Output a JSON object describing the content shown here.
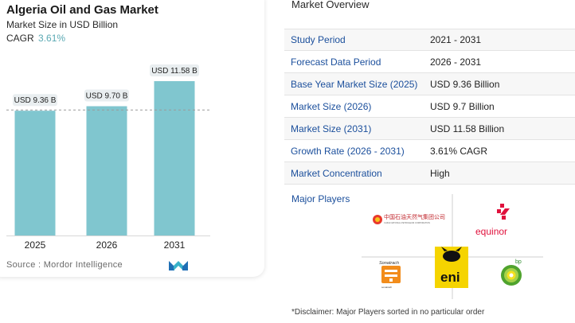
{
  "chart": {
    "title": "Algeria Oil and Gas Market",
    "subtitle": "Market Size in USD Billion",
    "cagr_label": "CAGR",
    "cagr_value": "3.61%",
    "source": "Source :  Mordor Intelligence"
  },
  "chart_data": {
    "type": "bar",
    "categories": [
      "2025",
      "2026",
      "2031"
    ],
    "values": [
      9.36,
      9.7,
      11.58
    ],
    "data_labels": [
      "USD 9.36 B",
      "USD 9.70 B",
      "USD 11.58 B"
    ],
    "title": "Algeria Oil and Gas Market",
    "subtitle": "Market Size in USD Billion",
    "xlabel": "",
    "ylabel": "",
    "bar_color": "#80c6cf",
    "reference_line_value": 9.36,
    "grid": false
  },
  "overview": {
    "title": "Market Overview",
    "rows": [
      {
        "label": "Study Period",
        "value": "2021 - 2031"
      },
      {
        "label": "Forecast Data Period",
        "value": "2026 - 2031"
      },
      {
        "label": "Base Year Market Size (2025)",
        "value": "USD 9.36 Billion"
      },
      {
        "label": "Market Size (2026)",
        "value": "USD 9.7 Billion"
      },
      {
        "label": "Market Size (2031)",
        "value": "USD 11.58 Billion"
      },
      {
        "label": "Growth Rate (2026 - 2031)",
        "value": "3.61% CAGR"
      },
      {
        "label": "Market Concentration",
        "value": "High"
      }
    ],
    "players_label": "Major Players",
    "players": [
      {
        "name": "中国石油天然气集团公司",
        "sub": "CHINA NATIONAL PETROLEUM CORPORATION",
        "icon": "cnpc-logo"
      },
      {
        "name": "equinor",
        "icon": "equinor-logo"
      },
      {
        "name": "Sonatrach",
        "icon": "sonatrach-logo"
      },
      {
        "name": "eni",
        "icon": "eni-logo"
      },
      {
        "name": "bp",
        "icon": "bp-logo"
      }
    ],
    "disclaimer": "*Disclaimer: Major Players sorted in no particular order"
  },
  "colors": {
    "accent_blue": "#1b4f9c",
    "teal": "#5aa9b3",
    "bar": "#80c6cf",
    "equinor_red": "#e0123d",
    "eni_yellow": "#f5d400",
    "bp_green": "#4fa32d"
  }
}
